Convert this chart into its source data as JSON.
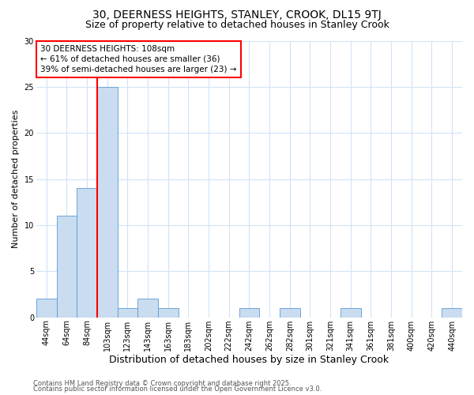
{
  "title1": "30, DEERNESS HEIGHTS, STANLEY, CROOK, DL15 9TJ",
  "title2": "Size of property relative to detached houses in Stanley Crook",
  "xlabel": "Distribution of detached houses by size in Stanley Crook",
  "ylabel": "Number of detached properties",
  "bar_labels": [
    "44sqm",
    "64sqm",
    "84sqm",
    "103sqm",
    "123sqm",
    "143sqm",
    "163sqm",
    "183sqm",
    "202sqm",
    "222sqm",
    "242sqm",
    "262sqm",
    "282sqm",
    "301sqm",
    "321sqm",
    "341sqm",
    "361sqm",
    "381sqm",
    "400sqm",
    "420sqm",
    "440sqm"
  ],
  "bar_values": [
    2,
    11,
    14,
    25,
    1,
    2,
    1,
    0,
    0,
    0,
    1,
    0,
    1,
    0,
    0,
    1,
    0,
    0,
    0,
    0,
    1
  ],
  "bar_color": "#c9dcf0",
  "bar_edgecolor": "#5b9bd5",
  "red_line_index": 3,
  "ylim": [
    0,
    30
  ],
  "yticks": [
    0,
    5,
    10,
    15,
    20,
    25,
    30
  ],
  "annotation_title": "30 DEERNESS HEIGHTS: 108sqm",
  "annotation_line1": "← 61% of detached houses are smaller (36)",
  "annotation_line2": "39% of semi-detached houses are larger (23) →",
  "footer1": "Contains HM Land Registry data © Crown copyright and database right 2025.",
  "footer2": "Contains public sector information licensed under the Open Government Licence v3.0.",
  "bg_color": "#ffffff",
  "grid_color": "#d0e4f7",
  "title1_fontsize": 10,
  "title2_fontsize": 9,
  "xlabel_fontsize": 9,
  "ylabel_fontsize": 8,
  "tick_fontsize": 7,
  "annotation_fontsize": 7.5,
  "footer_fontsize": 6
}
